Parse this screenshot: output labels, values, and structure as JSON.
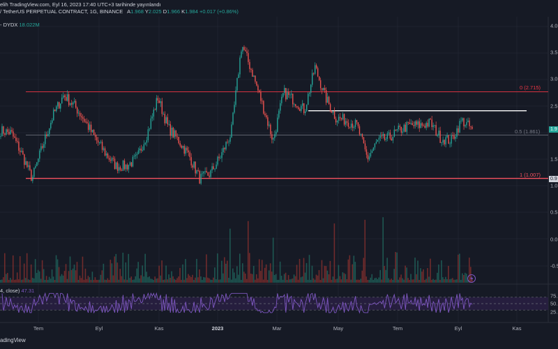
{
  "header": {
    "line1": "elih TradingView.com, Eyl 16, 2023 17:40 UTC+3 tarihinde yayınlandı",
    "symbol": "/ TetherUS PERPETUAL CONTRACT, 1G, BINANCE",
    "open_k": "A",
    "open_v": "1.968",
    "high_k": "Y",
    "high_v": "2.025",
    "low_k": "D",
    "low_v": "1.966",
    "close_k": "K",
    "close_v": "1.984",
    "change": "+0.017 (+0.86%)",
    "volume_label": "- DYDX",
    "volume_value": "18.022M",
    "rsi_label": "4, close)",
    "rsi_value": "47.31"
  },
  "watermark": "adingView",
  "colors": {
    "background": "#161a25",
    "up": "#26a69a",
    "down": "#ef5350",
    "rsi": "#7e57c2",
    "fib0": "#f23645",
    "fib05": "#787b86",
    "fib1": "#f7525f",
    "resistance": "#ffffff",
    "rsi_band": "#2a1f45"
  },
  "alert_icon": "lightning-icon",
  "chart_data": {
    "type": "candlestick",
    "timeframe": "1G",
    "price_scale": {
      "range": [
        0.85,
        4.0
      ],
      "ticks": [
        "3.5",
        "3.0",
        "2.5",
        "1.5",
        "1.0",
        "0.5",
        "0.0",
        "-0.5",
        "4.0"
      ]
    },
    "x_labels": [
      "Tem",
      "Eyl",
      "Kas",
      "2023",
      "Mar",
      "May",
      "Tem",
      "Eyl",
      "Kas"
    ],
    "x_label_bold": "2023",
    "fib_levels": [
      {
        "label": "0 (2.715)",
        "value": 2.715
      },
      {
        "label": "0.5 (1.861)",
        "value": 1.861
      },
      {
        "label": "1 (1.007)",
        "value": 1.007
      }
    ],
    "resistance": 2.34,
    "last_price": 1.984,
    "price_tags": [
      "1.9",
      "0.9"
    ],
    "price_path": [
      1.95,
      1.9,
      1.5,
      1.0,
      1.65,
      2.25,
      2.65,
      2.45,
      2.15,
      1.8,
      1.5,
      1.25,
      1.25,
      1.4,
      1.9,
      2.6,
      2.0,
      1.75,
      1.45,
      1.0,
      1.1,
      1.45,
      1.9,
      3.65,
      3.1,
      2.45,
      1.75,
      2.7,
      2.55,
      2.35,
      3.2,
      2.6,
      2.2,
      2.15,
      2.05,
      1.4,
      1.75,
      1.8,
      1.95,
      2.05,
      2.05,
      2.1,
      1.8,
      1.75,
      2.15,
      1.98
    ],
    "rsi": {
      "levels": [
        70,
        50,
        30
      ],
      "labels": [
        "75.",
        "50.",
        "25."
      ],
      "last": 47.31
    }
  }
}
